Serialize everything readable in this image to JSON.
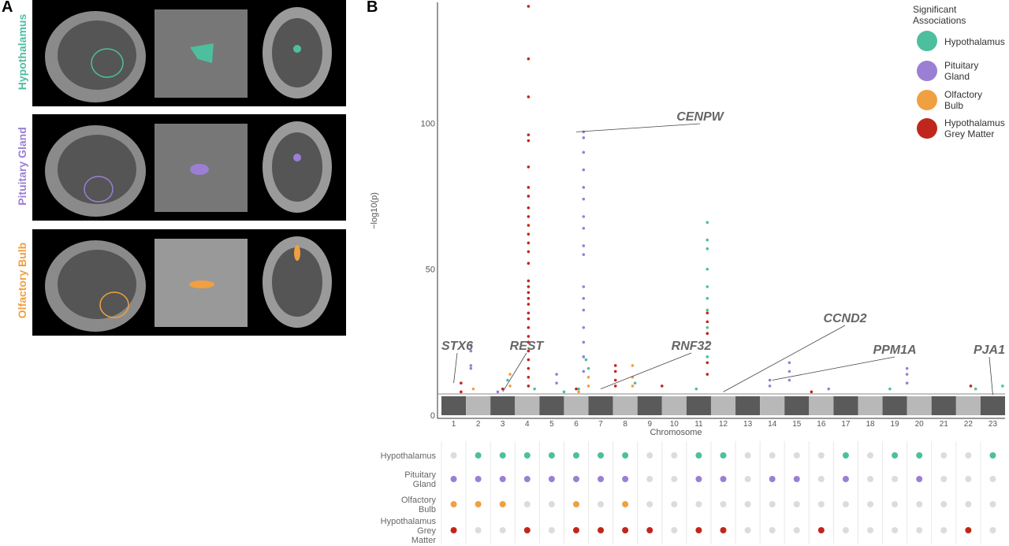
{
  "panel_a": {
    "letter": "A",
    "rows": [
      {
        "label": "Hypothalamus",
        "color": "#4dbf9f"
      },
      {
        "label": "Pituitary Gland",
        "color": "#9b7fd4"
      },
      {
        "label": "Olfactory Bulb",
        "color": "#f0a040"
      }
    ]
  },
  "panel_b": {
    "letter": "B",
    "legend": {
      "title_line1": "Significant",
      "title_line2": "Associations",
      "items": [
        {
          "line1": "Hypothalamus",
          "line2": "",
          "color": "#4dbf9f"
        },
        {
          "line1": "Pituitary",
          "line2": "Gland",
          "color": "#9b7fd4"
        },
        {
          "line1": "Olfactory",
          "line2": "Bulb",
          "color": "#f0a040"
        },
        {
          "line1": "Hypothalamus",
          "line2": "Grey Matter",
          "color": "#c0271c"
        }
      ]
    },
    "dot_matrix_rows": [
      {
        "line1": "Hypothalamus",
        "line2": "",
        "line3": ""
      },
      {
        "line1": "Pituitary",
        "line2": "Gland",
        "line3": ""
      },
      {
        "line1": "Olfactory",
        "line2": "Bulb",
        "line3": ""
      },
      {
        "line1": "Hypothalamus",
        "line2": "Grey",
        "line3": "Matter"
      }
    ]
  },
  "chart_data": {
    "type": "scatter",
    "subtype": "manhattan",
    "xlabel": "Chromosome",
    "ylabel": "−log10(p)",
    "ylim": [
      0,
      140
    ],
    "yticks": [
      0,
      50,
      100
    ],
    "significance_threshold": 7.3,
    "chromosomes": [
      "1",
      "2",
      "3",
      "4",
      "5",
      "6",
      "7",
      "8",
      "9",
      "10",
      "11",
      "12",
      "13",
      "14",
      "15",
      "16",
      "17",
      "18",
      "19",
      "20",
      "21",
      "22",
      "23"
    ],
    "gene_annotations": [
      {
        "gene": "STX6",
        "chromosome": "1",
        "value": 11
      },
      {
        "gene": "REST",
        "chromosome": "3",
        "value": 8
      },
      {
        "gene": "CENPW",
        "chromosome": "6",
        "value": 97
      },
      {
        "gene": "RNF32",
        "chromosome": "7",
        "value": 9
      },
      {
        "gene": "CCND2",
        "chromosome": "12",
        "value": 8
      },
      {
        "gene": "PPM1A",
        "chromosome": "14",
        "value": 12
      },
      {
        "gene": "PJA1",
        "chromosome": "23",
        "value": 7
      }
    ],
    "series": [
      {
        "name": "Hypothalamus",
        "color": "#4dbf9f",
        "points": [
          [
            3.2,
            12
          ],
          [
            5.5,
            8
          ],
          [
            6.3,
            20
          ],
          [
            6.4,
            19
          ],
          [
            6.5,
            16
          ],
          [
            8.4,
            11
          ],
          [
            11.35,
            66
          ],
          [
            11.35,
            60
          ],
          [
            11.35,
            57
          ],
          [
            11.35,
            50
          ],
          [
            11.35,
            44
          ],
          [
            11.35,
            40
          ],
          [
            11.35,
            36
          ],
          [
            11.35,
            30
          ],
          [
            11.35,
            25
          ],
          [
            11.35,
            20
          ],
          [
            10.9,
            9
          ],
          [
            18.8,
            9
          ],
          [
            22.3,
            9
          ],
          [
            23.4,
            10
          ],
          [
            4.3,
            9
          ],
          [
            6.1,
            9
          ]
        ]
      },
      {
        "name": "Pituitary Gland",
        "color": "#9b7fd4",
        "points": [
          [
            1.7,
            24
          ],
          [
            1.7,
            22
          ],
          [
            1.7,
            17
          ],
          [
            1.7,
            16
          ],
          [
            5.2,
            14
          ],
          [
            5.2,
            11
          ],
          [
            6.3,
            97
          ],
          [
            6.3,
            95
          ],
          [
            6.3,
            90
          ],
          [
            6.3,
            84
          ],
          [
            6.3,
            78
          ],
          [
            6.3,
            74
          ],
          [
            6.3,
            68
          ],
          [
            6.3,
            64
          ],
          [
            6.3,
            58
          ],
          [
            6.3,
            55
          ],
          [
            6.3,
            44
          ],
          [
            6.3,
            40
          ],
          [
            6.3,
            36
          ],
          [
            6.3,
            30
          ],
          [
            6.3,
            25
          ],
          [
            6.3,
            20
          ],
          [
            6.3,
            15
          ],
          [
            13.9,
            12
          ],
          [
            13.9,
            10
          ],
          [
            14.7,
            18
          ],
          [
            14.7,
            15
          ],
          [
            14.7,
            12
          ],
          [
            19.5,
            16
          ],
          [
            19.5,
            14
          ],
          [
            19.5,
            11
          ],
          [
            16.3,
            9
          ],
          [
            2.8,
            8
          ]
        ]
      },
      {
        "name": "Olfactory Bulb",
        "color": "#f0a040",
        "points": [
          [
            1.8,
            9
          ],
          [
            3.3,
            14
          ],
          [
            3.3,
            10
          ],
          [
            6.5,
            13
          ],
          [
            6.5,
            10
          ],
          [
            8.3,
            17
          ],
          [
            8.3,
            13
          ],
          [
            8.3,
            10
          ],
          [
            6.1,
            8
          ]
        ]
      },
      {
        "name": "Hypothalamus Grey Matter",
        "color": "#c0271c",
        "points": [
          [
            4.05,
            140
          ],
          [
            4.05,
            122
          ],
          [
            4.05,
            109
          ],
          [
            4.05,
            96
          ],
          [
            4.05,
            94
          ],
          [
            4.05,
            85
          ],
          [
            4.05,
            78
          ],
          [
            4.05,
            75
          ],
          [
            4.05,
            71
          ],
          [
            4.05,
            68
          ],
          [
            4.05,
            65
          ],
          [
            4.05,
            62
          ],
          [
            4.05,
            59
          ],
          [
            4.05,
            56
          ],
          [
            4.05,
            52
          ],
          [
            4.05,
            46
          ],
          [
            4.05,
            44
          ],
          [
            4.05,
            42
          ],
          [
            4.05,
            40
          ],
          [
            4.05,
            38
          ],
          [
            4.05,
            35
          ],
          [
            4.05,
            33
          ],
          [
            4.05,
            30
          ],
          [
            4.05,
            27
          ],
          [
            4.05,
            25
          ],
          [
            4.05,
            22
          ],
          [
            4.05,
            19
          ],
          [
            4.05,
            16
          ],
          [
            4.05,
            13
          ],
          [
            4.05,
            10
          ],
          [
            1.3,
            11
          ],
          [
            1.3,
            8
          ],
          [
            7.6,
            17
          ],
          [
            7.6,
            15
          ],
          [
            7.6,
            12
          ],
          [
            7.6,
            10
          ],
          [
            9.5,
            10
          ],
          [
            11.35,
            35
          ],
          [
            11.35,
            32
          ],
          [
            11.35,
            28
          ],
          [
            11.35,
            18
          ],
          [
            11.35,
            14
          ],
          [
            15.6,
            8
          ],
          [
            22.1,
            10
          ],
          [
            3.0,
            9
          ],
          [
            6.0,
            9
          ]
        ]
      }
    ],
    "dot_matrix": {
      "note": "Per-chromosome significant association indicators; colored = significant, grey = not",
      "Hypothalamus": [
        2,
        3,
        4,
        5,
        6,
        7,
        8,
        11,
        12,
        17,
        19,
        20,
        23
      ],
      "Pituitary Gland": [
        1,
        2,
        3,
        4,
        5,
        6,
        7,
        8,
        11,
        12,
        14,
        15,
        17,
        20
      ],
      "Olfactory Bulb": [
        1,
        2,
        3,
        6,
        8
      ],
      "Hypothalamus Grey Matter": [
        1,
        4,
        6,
        7,
        8,
        9,
        11,
        12,
        16,
        22
      ]
    }
  }
}
